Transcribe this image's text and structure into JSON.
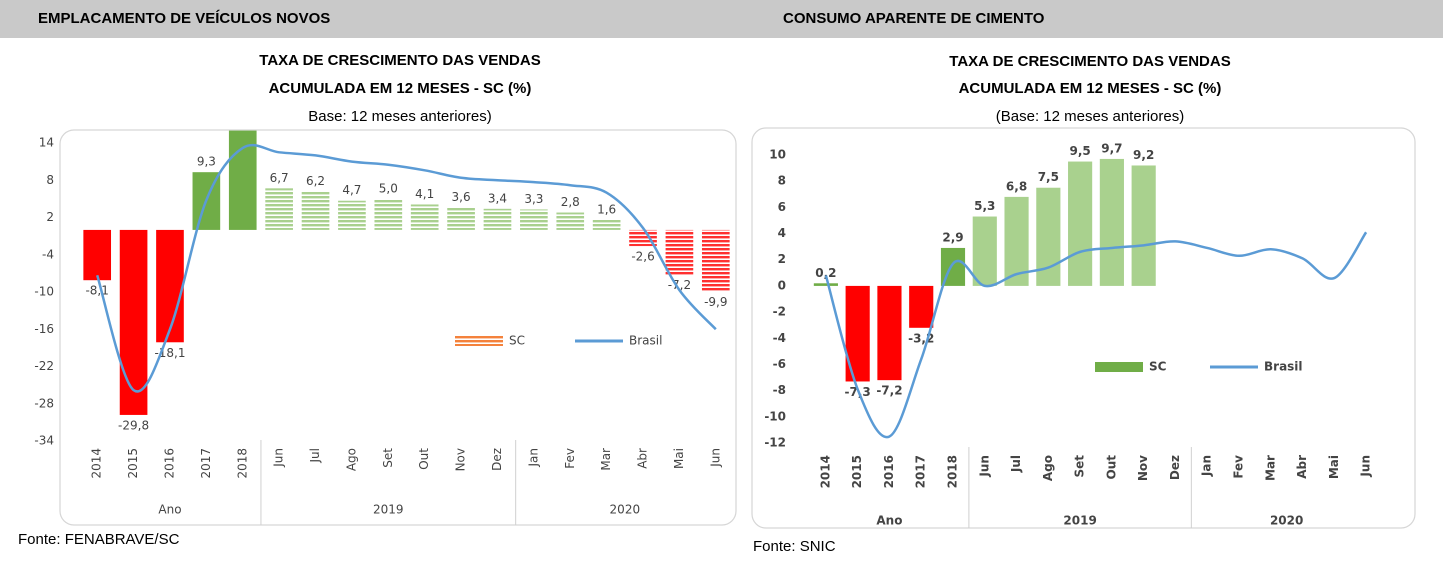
{
  "chart_data": [
    {
      "type": "bar",
      "header": "EMPLACAMENTO DE VEÍCULOS NOVOS",
      "title": "TAXA DE CRESCIMENTO DAS VENDAS",
      "title2": "ACUMULADA EM 12 MESES - SC (%)",
      "subtitle": "Base: 12 meses anteriores)",
      "source": "Fonte: FENABRAVE/SC",
      "categories": [
        "2014",
        "2015",
        "2016",
        "2017",
        "2018",
        "Jun",
        "Jul",
        "Ago",
        "Set",
        "Out",
        "Nov",
        "Dez",
        "Jan",
        "Fev",
        "Mar",
        "Abr",
        "Mai",
        "Jun"
      ],
      "groups": [
        {
          "label": "Ano",
          "count": 5
        },
        {
          "label": "2019",
          "count": 7
        },
        {
          "label": "2020",
          "count": 6
        }
      ],
      "ylim": [
        -34,
        14
      ],
      "yticks": [
        14,
        8,
        2,
        -4,
        -10,
        -16,
        -22,
        -28,
        -34
      ],
      "legend": "lower right",
      "series": [
        {
          "name": "SC",
          "type": "bar",
          "color": "#f4823c",
          "values": [
            -8.1,
            -29.8,
            -18.1,
            9.3,
            16,
            6.7,
            6.2,
            4.7,
            5.0,
            4.1,
            3.6,
            3.4,
            3.3,
            2.8,
            1.6,
            -2.6,
            -7.2,
            -9.9
          ],
          "value_labels": [
            "-8,1",
            "-29,8",
            "-18,1",
            "9,3",
            null,
            "6,7",
            "6,2",
            "4,7",
            "5,0",
            "4,1",
            "3,6",
            "3,4",
            "3,3",
            "2,8",
            "1,6",
            "-2,6",
            "-7,2",
            "-9,9"
          ],
          "bar_colors": [
            "#ff0000",
            "#ff0000",
            "#ff0000",
            "#70ad47",
            "#70ad47",
            "#a9d08e",
            "#a9d08e",
            "#a9d08e",
            "#a9d08e",
            "#a9d08e",
            "#a9d08e",
            "#a9d08e",
            "#a9d08e",
            "#a9d08e",
            "#a9d08e",
            "#ff3030",
            "#ff3030",
            "#ff3030"
          ],
          "hatched": [
            false,
            false,
            false,
            false,
            false,
            true,
            true,
            true,
            true,
            true,
            true,
            true,
            true,
            true,
            true,
            true,
            true,
            true
          ]
        },
        {
          "name": "Brasil",
          "type": "line",
          "color": "#5b9bd5",
          "values": [
            -7.3,
            -25.8,
            -16,
            4.8,
            13.2,
            12.5,
            12,
            11,
            10.5,
            9.6,
            8.4,
            8,
            7.7,
            7.2,
            6,
            0.3,
            -9.7,
            -16
          ]
        }
      ]
    },
    {
      "type": "bar",
      "header": "CONSUMO APARENTE DE CIMENTO",
      "title": "TAXA DE CRESCIMENTO DAS VENDAS",
      "title2": "ACUMULADA EM 12 MESES - SC (%)",
      "subtitle": "(Base: 12 meses anteriores)",
      "source": "Fonte: SNIC",
      "categories": [
        "2014",
        "2015",
        "2016",
        "2017",
        "2018",
        "Jun",
        "Jul",
        "Ago",
        "Set",
        "Out",
        "Nov",
        "Dez",
        "Jan",
        "Fev",
        "Mar",
        "Abr",
        "Mai",
        "Jun"
      ],
      "groups": [
        {
          "label": "Ano",
          "count": 5
        },
        {
          "label": "2019",
          "count": 7
        },
        {
          "label": "2020",
          "count": 6
        }
      ],
      "ylim": [
        -12,
        10
      ],
      "yticks": [
        10,
        8,
        6,
        4,
        2,
        0,
        -2,
        -4,
        -6,
        -8,
        -10,
        -12
      ],
      "legend": "center right",
      "series": [
        {
          "name": "SC",
          "type": "bar",
          "color": "#70ad47",
          "values": [
            0.2,
            -7.3,
            -7.2,
            -3.2,
            2.9,
            5.3,
            6.8,
            7.5,
            9.5,
            9.7,
            9.2,
            null,
            null,
            null,
            null,
            null,
            null,
            null
          ],
          "value_labels": [
            "0,2",
            "-7,3",
            "-7,2",
            "-3,2",
            "2,9",
            "5,3",
            "6,8",
            "7,5",
            "9,5",
            "9,7",
            "9,2",
            null,
            null,
            null,
            null,
            null,
            null,
            null
          ],
          "bar_colors": [
            "#70ad47",
            "#ff0000",
            "#ff0000",
            "#ff0000",
            "#70ad47",
            "#a9d18e",
            "#a9d18e",
            "#a9d18e",
            "#a9d18e",
            "#a9d18e",
            "#a9d18e",
            null,
            null,
            null,
            null,
            null,
            null,
            null
          ],
          "hatched": [
            false,
            false,
            false,
            false,
            false,
            false,
            false,
            false,
            false,
            false,
            false,
            false,
            false,
            false,
            false,
            false,
            false,
            false
          ]
        },
        {
          "name": "Brasil",
          "type": "line",
          "color": "#5b9bd5",
          "values": [
            0.8,
            -7.9,
            -11.5,
            -5.6,
            1.7,
            0,
            0.9,
            1.4,
            2.6,
            2.9,
            3.1,
            3.4,
            2.9,
            2.3,
            2.8,
            2.1,
            0.6,
            4.1
          ]
        }
      ]
    }
  ]
}
